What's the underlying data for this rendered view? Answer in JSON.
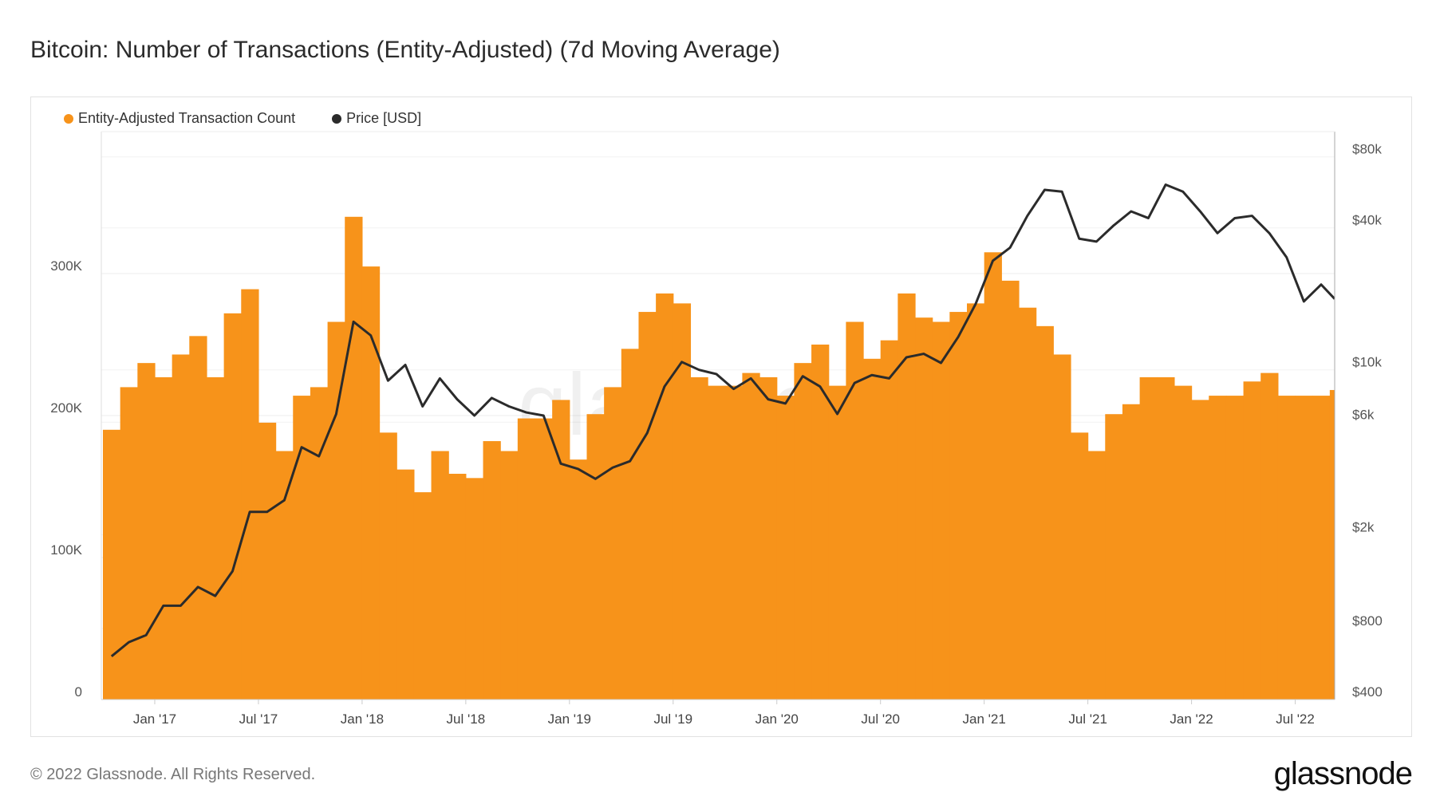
{
  "title": "Bitcoin: Number of Transactions (Entity-Adjusted) (7d Moving Average)",
  "footer": "© 2022 Glassnode. All Rights Reserved.",
  "logo": "glassnode",
  "watermark": "glassnode",
  "colors": {
    "bars": "#f7931a",
    "price": "#2b2b2b"
  },
  "chart_data": {
    "type": "bar",
    "title": "Bitcoin: Number of Transactions (Entity-Adjusted) (7d Moving Average)",
    "legend": [
      "Entity-Adjusted Transaction Count",
      "Price [USD]"
    ],
    "legend_position": "top-left",
    "x_start": "Oct 2016",
    "x_step": "1 month",
    "x_ticks": [
      "Jan '17",
      "Jul '17",
      "Jan '18",
      "Jul '18",
      "Jan '19",
      "Jul '19",
      "Jan '20",
      "Jul '20",
      "Jan '21",
      "Jul '21",
      "Jan '22",
      "Jul '22"
    ],
    "y_left": {
      "ticks": [
        "0",
        "100K",
        "200K",
        "300K"
      ],
      "tick_values": [
        0,
        100000,
        200000,
        300000
      ],
      "range": [
        0,
        400000
      ]
    },
    "y_right": {
      "scale": "log",
      "ticks": [
        "$400",
        "$800",
        "$2k",
        "$6k",
        "$10k",
        "$40k",
        "$80k"
      ],
      "tick_values": [
        400,
        800,
        2000,
        6000,
        10000,
        40000,
        80000
      ]
    },
    "series": [
      {
        "name": "Entity-Adjusted Transaction Count",
        "type": "bar",
        "values": [
          190000,
          220000,
          237000,
          227000,
          243000,
          256000,
          227000,
          272000,
          289000,
          195000,
          175000,
          214000,
          220000,
          266000,
          340000,
          305000,
          188000,
          162000,
          146000,
          175000,
          159000,
          156000,
          182000,
          175000,
          198000,
          198000,
          211000,
          169000,
          201000,
          220000,
          247000,
          273000,
          286000,
          279000,
          227000,
          221000,
          221000,
          230000,
          227000,
          214000,
          237000,
          250000,
          221000,
          266000,
          240000,
          253000,
          286000,
          269000,
          266000,
          273000,
          279000,
          315000,
          295000,
          276000,
          263000,
          243000,
          188000,
          175000,
          201000,
          208000,
          227000,
          227000,
          221000,
          211000,
          214000,
          214000,
          224000,
          230000,
          214000,
          214000,
          214000,
          218000
        ]
      },
      {
        "name": "Price [USD]",
        "type": "line",
        "values": [
          610,
          700,
          750,
          1000,
          1000,
          1200,
          1100,
          1400,
          2500,
          2500,
          2800,
          4700,
          4300,
          6500,
          16000,
          14000,
          9000,
          10500,
          7000,
          9200,
          7500,
          6400,
          7600,
          7000,
          6600,
          6400,
          4000,
          3800,
          3450,
          3850,
          4100,
          5400,
          8500,
          10800,
          10000,
          9600,
          8300,
          9200,
          7500,
          7200,
          9400,
          8500,
          6500,
          8800,
          9500,
          9200,
          11300,
          11700,
          10700,
          13800,
          19000,
          29000,
          33000,
          45000,
          58000,
          57000,
          36000,
          35000,
          41000,
          47000,
          44000,
          61000,
          57000,
          47000,
          38000,
          44000,
          45000,
          38000,
          30000,
          19500,
          23000,
          20000
        ]
      }
    ]
  }
}
